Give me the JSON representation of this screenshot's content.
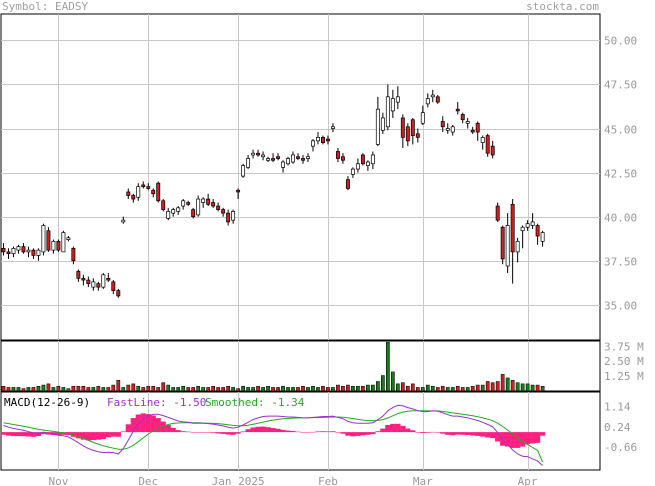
{
  "header": {
    "symbol_label": "Symbol: EADSY",
    "site": "stockta.com"
  },
  "price_axis": {
    "ticks": [
      "50.00",
      "47.50",
      "45.00",
      "42.50",
      "40.00",
      "37.50",
      "35.00"
    ]
  },
  "volume_axis": {
    "ticks": [
      "3.75 M",
      "2.50 M",
      "1.25 M"
    ]
  },
  "macd": {
    "label": "MACD(12-26-9)",
    "fastline_label": "FastLine: -1.50",
    "smoothed_label": "Smoothed: -1.34",
    "ticks": [
      "1.14",
      "0.24",
      "-0.66"
    ]
  },
  "x_axis": {
    "ticks": [
      "Nov",
      "Dec",
      "Jan 2025",
      "Feb",
      "Mar",
      "Apr"
    ]
  },
  "colors": {
    "up": "#ffffff",
    "down": "#cc2020",
    "grid": "#c8c8c8",
    "macd_fast": "#9933cc",
    "macd_smooth": "#22aa22",
    "macd_hist": "#ff2080",
    "vol_up": "#1a7a1a",
    "vol_down": "#cc2020"
  },
  "chart_data": {
    "type": "candlestick",
    "price_ylim": [
      33.0,
      51.5
    ],
    "volume_ylim": [
      0,
      4.2
    ],
    "macd_ylim": [
      -1.7,
      1.8
    ],
    "x_range": [
      0,
      119
    ],
    "x_tick_index": [
      11,
      29,
      47,
      65,
      84,
      105
    ],
    "candles": [
      [
        38.2,
        38.5,
        37.8,
        38.0,
        0.4
      ],
      [
        38.0,
        38.2,
        37.6,
        37.9,
        0.3
      ],
      [
        37.9,
        38.3,
        37.7,
        38.2,
        0.3
      ],
      [
        38.1,
        38.4,
        37.9,
        38.3,
        0.3
      ],
      [
        38.3,
        38.5,
        37.9,
        38.0,
        0.2
      ],
      [
        38.0,
        38.3,
        37.7,
        38.1,
        0.3
      ],
      [
        38.1,
        38.2,
        37.6,
        37.8,
        0.3
      ],
      [
        37.8,
        38.2,
        37.5,
        38.1,
        0.4
      ],
      [
        38.0,
        39.6,
        37.8,
        39.5,
        0.5
      ],
      [
        39.2,
        39.4,
        38.0,
        38.1,
        0.6
      ],
      [
        38.1,
        38.7,
        37.9,
        38.6,
        0.3
      ],
      [
        38.6,
        38.7,
        38.0,
        38.1,
        0.4
      ],
      [
        38.0,
        39.2,
        38.1,
        39.1,
        0.3
      ],
      [
        38.7,
        38.9,
        38.6,
        38.8,
        0.2
      ],
      [
        38.2,
        38.3,
        37.3,
        37.5,
        0.4
      ],
      [
        36.9,
        37.0,
        36.3,
        36.5,
        0.4
      ],
      [
        36.5,
        36.7,
        36.1,
        36.4,
        0.4
      ],
      [
        36.4,
        36.6,
        36.0,
        36.2,
        0.3
      ],
      [
        36.0,
        36.5,
        35.8,
        36.3,
        0.3
      ],
      [
        36.2,
        36.3,
        35.8,
        36.0,
        0.4
      ],
      [
        36.0,
        36.8,
        35.9,
        36.7,
        0.3
      ],
      [
        36.5,
        36.8,
        36.3,
        36.4,
        0.3
      ],
      [
        36.3,
        36.4,
        35.6,
        35.8,
        0.5
      ],
      [
        35.8,
        35.9,
        35.4,
        35.5,
        0.9
      ],
      [
        39.7,
        40.0,
        39.6,
        39.8,
        0.3
      ],
      [
        41.4,
        41.6,
        41.0,
        41.2,
        0.5
      ],
      [
        41.2,
        41.3,
        40.8,
        41.0,
        0.6
      ],
      [
        41.1,
        41.9,
        40.9,
        41.7,
        0.4
      ],
      [
        41.8,
        42.0,
        41.6,
        41.7,
        0.3
      ],
      [
        41.7,
        41.9,
        41.5,
        41.6,
        0.4
      ],
      [
        41.5,
        41.6,
        41.1,
        41.3,
        0.4
      ],
      [
        41.9,
        42.0,
        40.8,
        40.9,
        0.3
      ],
      [
        40.9,
        41.0,
        40.3,
        40.4,
        0.7
      ],
      [
        39.9,
        40.5,
        39.8,
        40.3,
        0.5
      ],
      [
        40.2,
        40.5,
        40.0,
        40.4,
        0.3
      ],
      [
        40.3,
        40.6,
        40.1,
        40.5,
        0.3
      ],
      [
        40.6,
        41.0,
        40.4,
        40.9,
        0.4
      ],
      [
        40.8,
        40.9,
        40.6,
        40.7,
        0.3
      ],
      [
        40.4,
        40.5,
        39.9,
        40.0,
        0.3
      ],
      [
        40.1,
        41.2,
        40.0,
        41.0,
        0.4
      ],
      [
        40.8,
        41.1,
        40.5,
        41.0,
        0.3
      ],
      [
        41.0,
        41.3,
        40.6,
        40.7,
        0.3
      ],
      [
        40.8,
        41.0,
        40.5,
        40.6,
        0.4
      ],
      [
        40.6,
        40.8,
        40.3,
        40.4,
        0.3
      ],
      [
        40.4,
        40.5,
        40.0,
        40.2,
        0.3
      ],
      [
        40.2,
        40.4,
        39.5,
        39.7,
        0.4
      ],
      [
        39.8,
        40.4,
        39.6,
        40.3,
        0.3
      ],
      [
        41.5,
        41.6,
        41.0,
        41.4,
        0.2
      ],
      [
        42.3,
        43.0,
        42.2,
        42.9,
        0.4
      ],
      [
        42.8,
        43.5,
        42.7,
        43.3,
        0.3
      ],
      [
        43.5,
        43.8,
        43.3,
        43.6,
        0.3
      ],
      [
        43.6,
        43.8,
        43.4,
        43.5,
        0.4
      ],
      [
        43.4,
        43.7,
        43.2,
        43.5,
        0.3
      ],
      [
        43.2,
        43.4,
        43.1,
        43.3,
        0.4
      ],
      [
        43.3,
        43.6,
        43.1,
        43.2,
        0.3
      ],
      [
        43.4,
        43.6,
        43.2,
        43.3,
        0.3
      ],
      [
        42.8,
        43.2,
        42.5,
        43.1,
        0.4
      ],
      [
        43.0,
        43.4,
        42.9,
        43.3,
        0.3
      ],
      [
        43.1,
        43.7,
        43.0,
        43.5,
        0.3
      ],
      [
        43.4,
        43.6,
        43.2,
        43.3,
        0.3
      ],
      [
        43.3,
        43.5,
        43.0,
        43.2,
        0.4
      ],
      [
        43.3,
        43.6,
        43.1,
        43.4,
        0.3
      ],
      [
        44.0,
        44.4,
        43.7,
        44.3,
        0.4
      ],
      [
        44.3,
        44.8,
        44.1,
        44.5,
        0.3
      ],
      [
        44.5,
        44.6,
        44.1,
        44.2,
        0.4
      ],
      [
        44.4,
        44.6,
        44.1,
        44.3,
        0.3
      ],
      [
        45.0,
        45.3,
        44.8,
        45.1,
        0.3
      ],
      [
        43.7,
        43.9,
        43.1,
        43.3,
        0.5
      ],
      [
        43.4,
        43.6,
        43.0,
        43.2,
        0.4
      ],
      [
        42.1,
        42.3,
        41.5,
        41.6,
        0.5
      ],
      [
        42.4,
        42.8,
        42.2,
        42.7,
        0.4
      ],
      [
        42.7,
        43.3,
        42.5,
        43.0,
        0.4
      ],
      [
        43.5,
        43.6,
        42.9,
        43.0,
        0.4
      ],
      [
        42.9,
        43.2,
        42.6,
        43.1,
        0.5
      ],
      [
        43.0,
        43.7,
        42.7,
        43.5,
        0.5
      ],
      [
        44.1,
        46.8,
        44.0,
        46.1,
        0.8
      ],
      [
        44.9,
        45.9,
        44.7,
        45.6,
        1.3
      ],
      [
        45.1,
        47.5,
        44.9,
        46.8,
        4.1
      ],
      [
        46.0,
        47.2,
        45.6,
        46.7,
        1.6
      ],
      [
        46.5,
        47.4,
        46.1,
        46.8,
        0.6
      ],
      [
        45.6,
        45.8,
        43.9,
        44.5,
        0.7
      ],
      [
        45.1,
        45.3,
        44.0,
        44.3,
        0.4
      ],
      [
        45.5,
        45.6,
        44.1,
        44.6,
        0.6
      ],
      [
        44.7,
        45.0,
        44.2,
        44.5,
        0.3
      ],
      [
        45.3,
        46.3,
        45.2,
        45.9,
        0.3
      ],
      [
        46.4,
        47.0,
        46.2,
        46.7,
        0.5
      ],
      [
        46.8,
        47.2,
        46.5,
        46.9,
        0.4
      ],
      [
        46.8,
        46.9,
        46.4,
        46.5,
        0.3
      ],
      [
        45.4,
        45.7,
        44.8,
        45.1,
        0.4
      ],
      [
        44.9,
        45.3,
        44.7,
        45.0,
        0.3
      ],
      [
        44.8,
        45.2,
        44.6,
        45.1,
        0.3
      ],
      [
        46.1,
        46.5,
        45.8,
        46.0,
        0.4
      ],
      [
        45.8,
        45.9,
        45.3,
        45.5,
        0.3
      ],
      [
        45.3,
        45.6,
        45.0,
        45.4,
        0.3
      ],
      [
        44.9,
        45.1,
        44.7,
        44.8,
        0.4
      ],
      [
        45.3,
        45.4,
        44.3,
        44.8,
        0.5
      ],
      [
        44.2,
        44.6,
        43.8,
        44.5,
        0.5
      ],
      [
        44.6,
        44.7,
        43.4,
        43.6,
        0.8
      ],
      [
        44.0,
        44.3,
        43.3,
        43.5,
        0.7
      ],
      [
        40.6,
        40.8,
        39.7,
        39.8,
        0.8
      ],
      [
        39.4,
        39.5,
        37.3,
        37.6,
        1.4
      ],
      [
        37.2,
        40.2,
        36.8,
        39.5,
        1.1
      ],
      [
        40.7,
        41.0,
        36.2,
        38.0,
        0.9
      ],
      [
        38.0,
        38.8,
        37.4,
        38.6,
        0.7
      ],
      [
        39.2,
        39.5,
        38.2,
        39.4,
        0.6
      ],
      [
        39.4,
        39.8,
        39.2,
        39.6,
        0.6
      ],
      [
        39.5,
        40.2,
        39.3,
        39.7,
        0.5
      ],
      [
        39.5,
        39.6,
        38.4,
        38.9,
        0.5
      ],
      [
        38.6,
        39.2,
        38.3,
        39.1,
        0.4
      ]
    ],
    "macd_fast": [
      0.3,
      0.22,
      0.16,
      0.12,
      0.08,
      0.02,
      -0.04,
      -0.06,
      0.0,
      -0.05,
      -0.1,
      -0.14,
      -0.16,
      -0.22,
      -0.34,
      -0.48,
      -0.62,
      -0.74,
      -0.82,
      -0.88,
      -0.92,
      -0.9,
      -0.92,
      -0.98,
      -0.74,
      -0.36,
      0.04,
      0.36,
      0.58,
      0.72,
      0.8,
      0.8,
      0.74,
      0.66,
      0.58,
      0.5,
      0.46,
      0.44,
      0.4,
      0.4,
      0.4,
      0.38,
      0.36,
      0.32,
      0.28,
      0.22,
      0.18,
      0.22,
      0.32,
      0.44,
      0.56,
      0.64,
      0.7,
      0.72,
      0.72,
      0.72,
      0.7,
      0.68,
      0.68,
      0.66,
      0.64,
      0.64,
      0.66,
      0.68,
      0.7,
      0.7,
      0.72,
      0.66,
      0.6,
      0.48,
      0.42,
      0.4,
      0.4,
      0.4,
      0.42,
      0.56,
      0.72,
      0.96,
      1.1,
      1.2,
      1.18,
      1.1,
      1.04,
      0.96,
      0.92,
      0.92,
      0.96,
      0.94,
      0.86,
      0.78,
      0.72,
      0.72,
      0.68,
      0.64,
      0.58,
      0.52,
      0.44,
      0.34,
      0.24,
      -0.02,
      -0.36,
      -0.56,
      -0.8,
      -0.98,
      -1.08,
      -1.1,
      -1.2,
      -1.3,
      -1.5
    ],
    "macd_smooth": [
      0.42,
      0.38,
      0.34,
      0.3,
      0.26,
      0.22,
      0.17,
      0.12,
      0.09,
      0.06,
      0.03,
      0.0,
      -0.04,
      -0.08,
      -0.13,
      -0.2,
      -0.28,
      -0.37,
      -0.46,
      -0.54,
      -0.61,
      -0.67,
      -0.72,
      -0.77,
      -0.77,
      -0.71,
      -0.59,
      -0.43,
      -0.26,
      -0.09,
      0.05,
      0.17,
      0.27,
      0.34,
      0.39,
      0.41,
      0.42,
      0.42,
      0.42,
      0.42,
      0.41,
      0.4,
      0.39,
      0.38,
      0.36,
      0.33,
      0.3,
      0.29,
      0.29,
      0.31,
      0.35,
      0.4,
      0.45,
      0.5,
      0.54,
      0.57,
      0.6,
      0.61,
      0.63,
      0.64,
      0.64,
      0.64,
      0.65,
      0.65,
      0.66,
      0.67,
      0.68,
      0.68,
      0.67,
      0.64,
      0.61,
      0.57,
      0.54,
      0.52,
      0.51,
      0.52,
      0.56,
      0.64,
      0.73,
      0.83,
      0.9,
      0.94,
      0.96,
      0.96,
      0.96,
      0.95,
      0.95,
      0.95,
      0.93,
      0.9,
      0.86,
      0.83,
      0.8,
      0.77,
      0.73,
      0.69,
      0.64,
      0.58,
      0.51,
      0.4,
      0.25,
      0.09,
      -0.09,
      -0.27,
      -0.43,
      -0.56,
      -0.69,
      -0.82,
      -1.34
    ]
  }
}
